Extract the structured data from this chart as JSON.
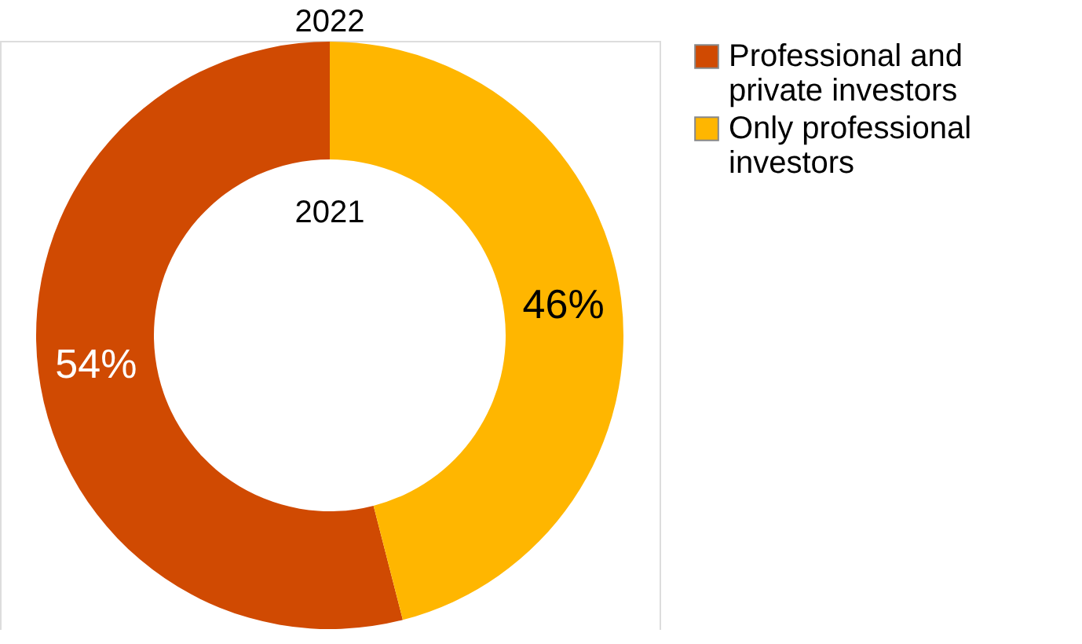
{
  "chart_data": {
    "type": "donut",
    "title": "2022",
    "annotations": [
      "2021"
    ],
    "categories": [
      "Professional and private investors",
      "Only professional investors"
    ],
    "values": [
      54,
      46
    ],
    "colors": [
      "#d04a02",
      "#ffb600"
    ],
    "value_labels": [
      "54%",
      "46%"
    ],
    "legend": "right"
  }
}
